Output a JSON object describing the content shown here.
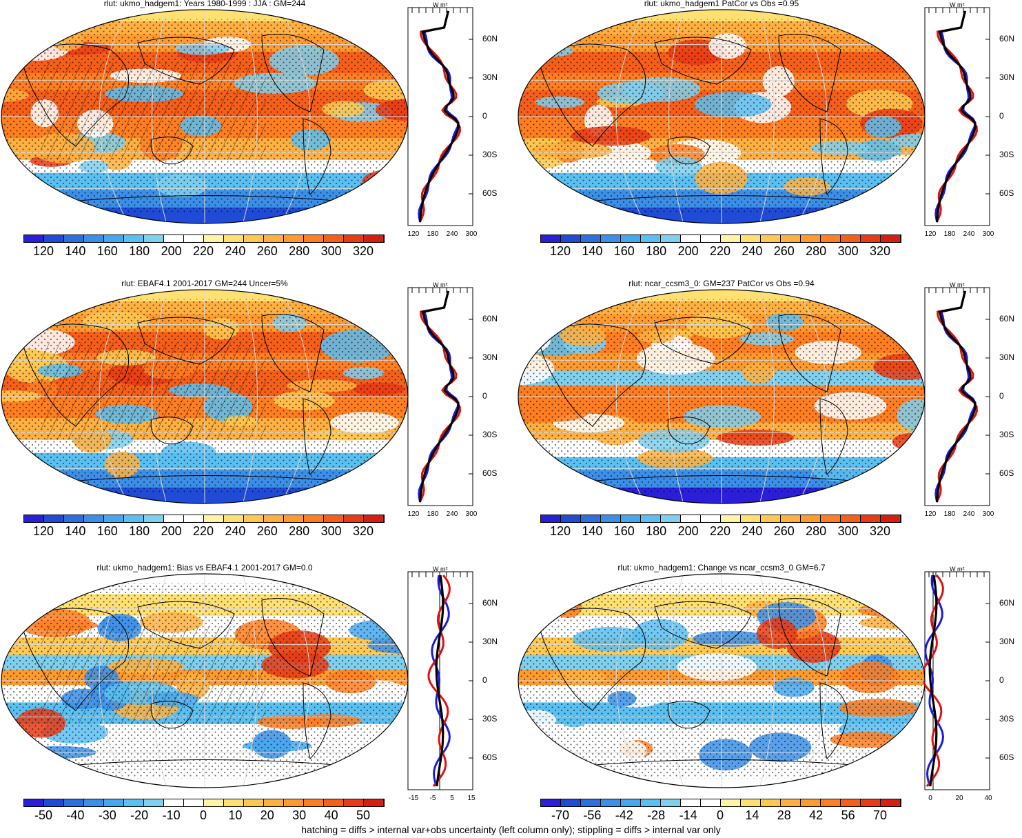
{
  "footer": "hatching = diffs > internal var+obs uncertainty (left column only); stippling = diffs > internal var only",
  "colors": {
    "abs_scale": [
      "#2a1fd8",
      "#1f4bd6",
      "#2e6fe0",
      "#3c8fe8",
      "#45a8ee",
      "#5ac0f2",
      "#7fcfee",
      "#ffffff",
      "#ffffff",
      "#fff3a8",
      "#ffe070",
      "#ffc950",
      "#ffb040",
      "#ff9a2e",
      "#ff7e22",
      "#f55f1a",
      "#e83a14",
      "#d61f10"
    ],
    "diff_scale": [
      "#2a1fd8",
      "#1f4bd6",
      "#2e6fe0",
      "#3c8fe8",
      "#45a8ee",
      "#5ac0f2",
      "#7fcfee",
      "#ffffff",
      "#ffffff",
      "#fff3a8",
      "#ffe070",
      "#ffc950",
      "#ffb040",
      "#ff9a2e",
      "#ff7e22",
      "#f55f1a",
      "#e83a14",
      "#d61f10"
    ],
    "line_black": "#000000",
    "line_red": "#e01010",
    "line_blue": "#1a1ae0"
  },
  "zonal_unit": "W m²",
  "lat_labels": [
    "60N",
    "30N",
    "0",
    "30S",
    "60S"
  ],
  "panels": [
    {
      "title": "rlut: ukmo_hadgem1: Years 1980-1999 : JJA : GM=244",
      "scale": "abs",
      "cbar_labels": [
        "120",
        "140",
        "160",
        "180",
        "200",
        "220",
        "240",
        "260",
        "280",
        "300",
        "320"
      ],
      "zonal_ticks": [
        "120",
        "180",
        "240",
        "300"
      ],
      "hatch": true
    },
    {
      "title": "rlut: ukmo_hadgem1 PatCor vs Obs =0.95",
      "scale": "abs",
      "cbar_labels": [
        "120",
        "140",
        "160",
        "180",
        "200",
        "220",
        "240",
        "260",
        "280",
        "300",
        "320"
      ],
      "zonal_ticks": [
        "120",
        "180",
        "240",
        "300"
      ],
      "hatch": false
    },
    {
      "title": "rlut: EBAF4.1 2001-2017 GM=244 Uncer=5%",
      "scale": "abs",
      "cbar_labels": [
        "120",
        "140",
        "160",
        "180",
        "200",
        "220",
        "240",
        "260",
        "280",
        "300",
        "320"
      ],
      "zonal_ticks": [
        "120",
        "180",
        "240",
        "300"
      ],
      "hatch": true
    },
    {
      "title": "rlut: ncar_ccsm3_0: GM=237 PatCor vs Obs =0.94",
      "scale": "abs",
      "cbar_labels": [
        "120",
        "140",
        "160",
        "180",
        "200",
        "220",
        "240",
        "260",
        "280",
        "300",
        "320"
      ],
      "zonal_ticks": [
        "120",
        "180",
        "240",
        "300"
      ],
      "hatch": false
    },
    {
      "title": "rlut: ukmo_hadgem1: Bias vs EBAF4.1 2001-2017 GM=0.0",
      "scale": "diff",
      "cbar_labels": [
        "-50",
        "-40",
        "-30",
        "-20",
        "-10",
        "0",
        "10",
        "20",
        "30",
        "40",
        "50"
      ],
      "zonal_ticks": [
        "-15",
        "-5",
        "5",
        "15"
      ],
      "hatch": true
    },
    {
      "title": "rlut: ukmo_hadgem1: Change vs ncar_ccsm3_0 GM=6.7",
      "scale": "diff",
      "cbar_labels": [
        "-70",
        "-56",
        "-42",
        "-28",
        "-14",
        "0",
        "14",
        "28",
        "42",
        "56",
        "70"
      ],
      "zonal_ticks": [
        "0",
        "20",
        "40"
      ],
      "hatch": false
    }
  ]
}
